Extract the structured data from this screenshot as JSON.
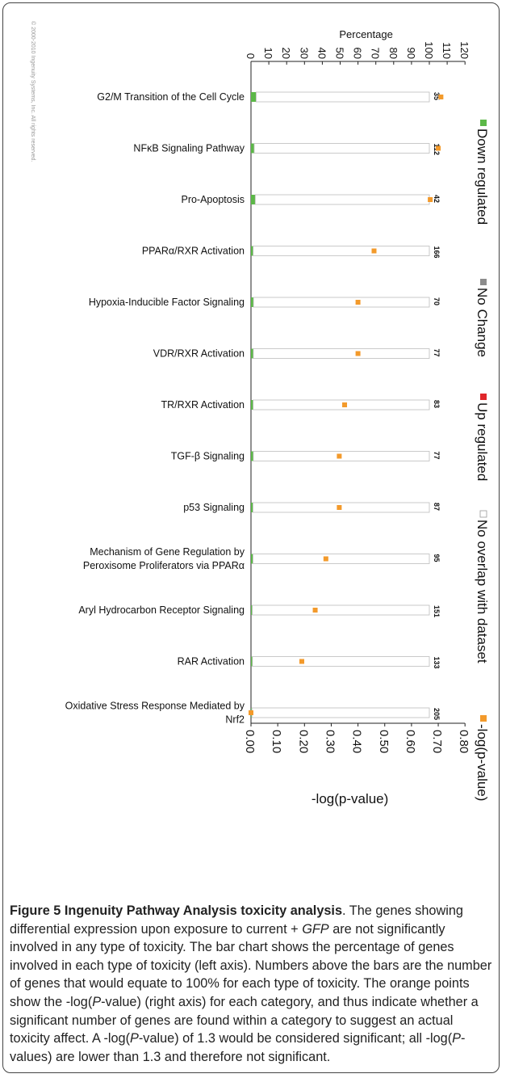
{
  "copyright": "© 2000-2010 Ingenuity Systems, Inc. All rights reserved.",
  "chart_data": {
    "type": "bar",
    "orientation": "horizontal",
    "title": "",
    "top_axis": {
      "label": "Percentage",
      "range": [
        0,
        120
      ],
      "ticks": [
        "0",
        "10",
        "20",
        "30",
        "40",
        "50",
        "60",
        "70",
        "80",
        "90",
        "100",
        "110",
        "120"
      ]
    },
    "bottom_axis": {
      "label": "-log(p-value)",
      "range": [
        0,
        0.8
      ],
      "ticks": [
        "0.00",
        "0.10",
        "0.20",
        "0.30",
        "0.40",
        "0.50",
        "0.60",
        "0.70",
        "0.80"
      ]
    },
    "categories": [
      "G2/M Transition of the Cell Cycle",
      "NFκB Signaling Pathway",
      "Pro-Apoptosis",
      "PPARα/RXR Activation",
      "Hypoxia-Inducible Factor Signaling",
      "VDR/RXR Activation",
      "TR/RXR Activation",
      "TGF-β Signaling",
      "p53 Signaling",
      "Mechanism of Gene Regulation by Peroxisome Proliferators via PPARα",
      "Aryl Hydrocarbon Receptor Signaling",
      "RAR Activation",
      "Oxidative Stress Response Mediated by Nrf2"
    ],
    "category_lines": [
      [
        "G2/M Transition of the Cell Cycle"
      ],
      [
        "NFκB Signaling Pathway"
      ],
      [
        "Pro-Apoptosis"
      ],
      [
        "PPARα/RXR Activation"
      ],
      [
        "Hypoxia-Inducible Factor Signaling"
      ],
      [
        "VDR/RXR Activation"
      ],
      [
        "TR/RXR Activation"
      ],
      [
        "TGF-β Signaling"
      ],
      [
        "p53 Signaling"
      ],
      [
        "Mechanism of Gene Regulation by",
        "Peroxisome Proliferators via PPARα"
      ],
      [
        "Aryl Hydrocarbon Receptor Signaling"
      ],
      [
        "RAR Activation"
      ],
      [
        "Oxidative Stress Response Mediated by",
        "Nrf2"
      ]
    ],
    "totals": [
      35,
      112,
      42,
      166,
      70,
      77,
      83,
      77,
      87,
      95,
      151,
      133,
      205
    ],
    "series": [
      {
        "name": "Down regulated",
        "color": "#5cb848",
        "values": [
          2.9,
          1.8,
          2.4,
          1.2,
          1.4,
          1.3,
          1.2,
          1.3,
          1.1,
          1.1,
          0.7,
          0.8,
          0.5
        ]
      },
      {
        "name": "No Change",
        "color": "#8c8c8c",
        "values": [
          0,
          0,
          0,
          0,
          0,
          0,
          0,
          0,
          0,
          0,
          0,
          0,
          0
        ]
      },
      {
        "name": "Up regulated",
        "color": "#e0262b",
        "values": [
          0,
          0,
          0,
          0,
          0,
          0,
          0,
          0,
          0,
          0,
          0,
          0,
          0
        ]
      },
      {
        "name": "No overlap with dataset",
        "color": "#ffffff",
        "values": [
          97.1,
          98.2,
          97.6,
          98.8,
          98.6,
          98.7,
          98.8,
          98.7,
          98.9,
          98.9,
          99.3,
          99.2,
          99.5
        ]
      }
    ],
    "points": {
      "name": "-log(p-value)",
      "color": "#f39a2b",
      "values": [
        0.71,
        0.7,
        0.67,
        0.46,
        0.4,
        0.4,
        0.35,
        0.33,
        0.33,
        0.28,
        0.24,
        0.19,
        0.0
      ]
    },
    "legend_position": "right"
  },
  "caption": {
    "figure_label": "Figure 5",
    "figure_title": "Ingenuity Pathway Analysis toxicity analysis",
    "text_1": ". The genes showing differential expression upon exposure to current +",
    "text_2_italic": "GFP",
    "text_3": " are not significantly involved in any type of toxicity. The bar chart shows the percentage of genes involved in each type of toxicity (left axis). Numbers above the bars are the number of genes that would equate to 100% for each type of toxicity. The orange points show the -log(",
    "text_p1": "P",
    "text_4": "-value) (right axis) for each category, and thus indicate whether a significant number of genes are found within a category to suggest an actual toxicity affect. A -log(",
    "text_p2": "P",
    "text_5": "-value) of 1.3 would be considered significant; all -log(",
    "text_p3": "P",
    "text_6": "-values) are lower than 1.3 and therefore not significant."
  }
}
